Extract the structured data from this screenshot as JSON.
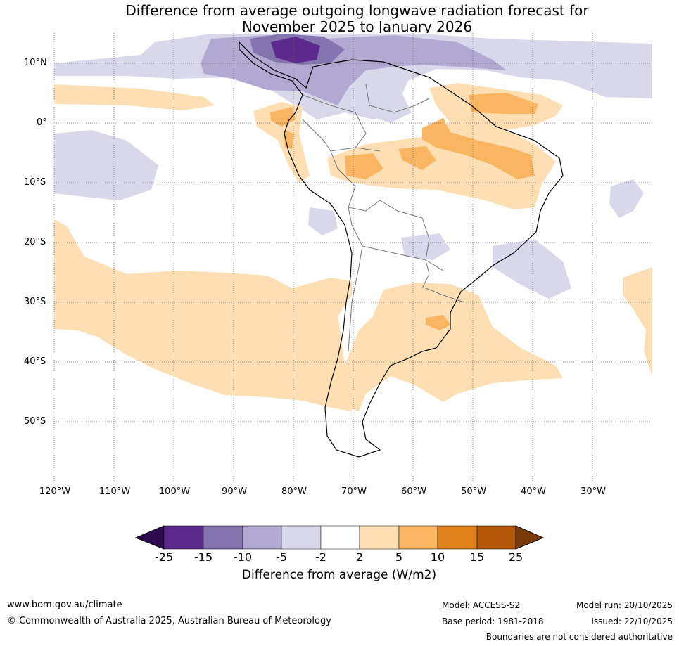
{
  "title_line1": "Difference from average outgoing longwave radiation forecast for",
  "title_line2": "November 2025 to January 2026",
  "map": {
    "lat_labels": [
      "10°N",
      "0°",
      "10°S",
      "20°S",
      "30°S",
      "40°S",
      "50°S"
    ],
    "lon_labels": [
      "120°W",
      "110°W",
      "100°W",
      "90°W",
      "80°W",
      "70°W",
      "60°W",
      "50°W",
      "40°W",
      "30°W"
    ],
    "lat_range": [
      -60,
      15
    ],
    "lon_range": [
      -120,
      -20
    ]
  },
  "colorbar": {
    "ticks": [
      "-25",
      "-15",
      "-10",
      "-5",
      "-2",
      "2",
      "5",
      "10",
      "15",
      "25"
    ],
    "colors": {
      "below_min": "#2d0a4e",
      "m25_m15": "#5b2a8c",
      "m15_m10": "#8474b0",
      "m10_m5": "#b1a9d1",
      "m5_m2": "#d9d8ea",
      "m2_p2": "#ffffff",
      "p2_p5": "#fddfb3",
      "p5_p10": "#f9b561",
      "p10_p15": "#e0821b",
      "p15_p25": "#b35708",
      "above_max": "#7a3a05"
    },
    "label": "Difference from average (W/m2)"
  },
  "footer": {
    "website": "www.bom.gov.au/climate",
    "copyright": "© Commonwealth of Australia 2025, Australian Bureau of Meteorology",
    "model": "Model: ACCESS-S2",
    "base_period": "Base period: 1981-2018",
    "model_run": "Model run: 20/10/2025",
    "issued": "Issued: 22/10/2025",
    "disclaimer": "Boundaries are not considered authoritative"
  }
}
